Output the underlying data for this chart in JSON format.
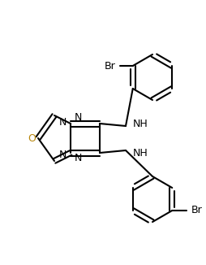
{
  "background_color": "#ffffff",
  "line_color": "#000000",
  "o_color": "#b8860b",
  "line_width": 1.5,
  "figsize": [
    2.55,
    3.26
  ],
  "dpi": 100,
  "atoms": {
    "N_labels": "N",
    "O_labels": "O",
    "Br_labels": "Br",
    "NH_labels": "NH"
  }
}
